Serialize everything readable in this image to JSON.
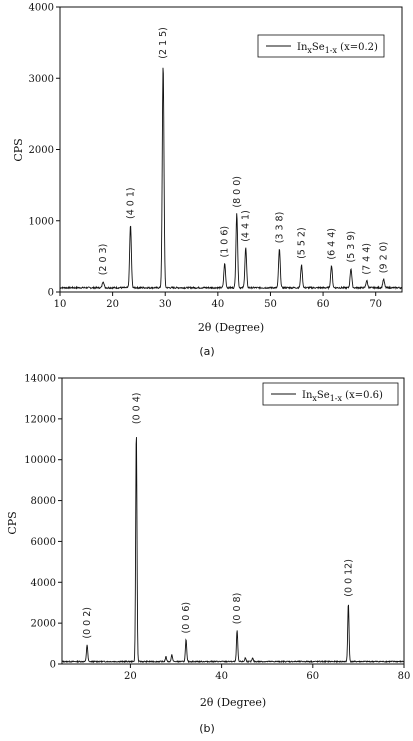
{
  "chart_data": [
    {
      "type": "line",
      "panel_label": "(a)",
      "xlabel": "2θ (Degree)",
      "ylabel": "CPS",
      "xlim": [
        10,
        75
      ],
      "ylim": [
        0,
        4000
      ],
      "xticks": [
        10,
        20,
        30,
        40,
        50,
        60,
        70
      ],
      "yticks": [
        0,
        1000,
        2000,
        3000,
        4000
      ],
      "legend": {
        "base": "In",
        "sub1": "x",
        "mid": "Se",
        "sub2": "1-x",
        "tail": " (x=0.2)",
        "position": "top-right"
      },
      "baseline": 60,
      "peaks": [
        {
          "x": 18.2,
          "y": 150,
          "label": "(2 0 3)"
        },
        {
          "x": 23.4,
          "y": 940,
          "label": "(4 0 1)"
        },
        {
          "x": 29.6,
          "y": 3190,
          "label": "(2 1 5)"
        },
        {
          "x": 41.3,
          "y": 400,
          "label": "(1 0 6)"
        },
        {
          "x": 43.6,
          "y": 1100,
          "label": "(8 0 0)"
        },
        {
          "x": 45.3,
          "y": 620,
          "label": "(4 4 1)"
        },
        {
          "x": 51.7,
          "y": 600,
          "label": "(3 3 8)"
        },
        {
          "x": 55.9,
          "y": 380,
          "label": "(5 5 2)"
        },
        {
          "x": 61.6,
          "y": 370,
          "label": "(6 4 4)"
        },
        {
          "x": 65.3,
          "y": 330,
          "label": "(5 3 9)"
        },
        {
          "x": 68.3,
          "y": 160,
          "label": "(7 4 4)"
        },
        {
          "x": 71.5,
          "y": 180,
          "label": "(9 2 0)"
        }
      ]
    },
    {
      "type": "line",
      "panel_label": "(b)",
      "xlabel": "2θ (Degree)",
      "ylabel": "CPS",
      "xlim": [
        5,
        80
      ],
      "ylim": [
        0,
        14000
      ],
      "xticks": [
        20,
        40,
        60,
        80
      ],
      "yticks": [
        0,
        2000,
        4000,
        6000,
        8000,
        10000,
        12000,
        14000
      ],
      "legend": {
        "base": "In",
        "sub1": "x",
        "mid": "Se",
        "sub2": "1-x",
        "tail": " (x=0.6)",
        "position": "top-right"
      },
      "baseline": 120,
      "peaks": [
        {
          "x": 10.5,
          "y": 950,
          "label": "(0 0 2)"
        },
        {
          "x": 21.3,
          "y": 11450,
          "label": "(0 0 4)"
        },
        {
          "x": 27.8,
          "y": 350,
          "label": ""
        },
        {
          "x": 29.1,
          "y": 450,
          "label": ""
        },
        {
          "x": 32.2,
          "y": 1200,
          "label": "(0 0 6)"
        },
        {
          "x": 43.4,
          "y": 1650,
          "label": "(0 0 8)"
        },
        {
          "x": 45.2,
          "y": 300,
          "label": ""
        },
        {
          "x": 46.8,
          "y": 280,
          "label": ""
        },
        {
          "x": 67.8,
          "y": 3000,
          "label": "(0 0 12)"
        }
      ]
    }
  ]
}
